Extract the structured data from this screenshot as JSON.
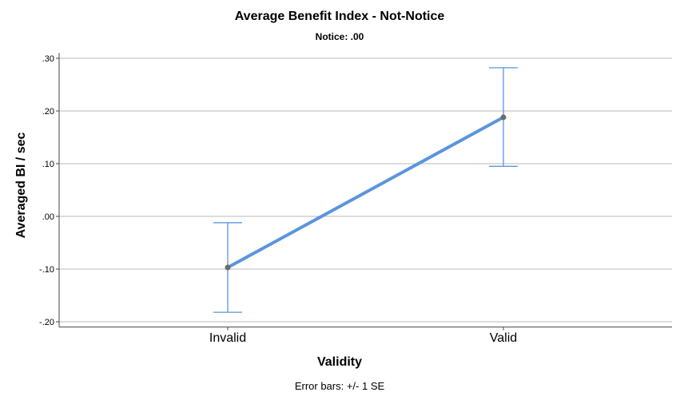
{
  "chart_data": {
    "type": "line",
    "title": "Average Benefit Index - Not-Notice",
    "subtitle": "Notice: .00",
    "xlabel": "Validity",
    "ylabel": "Averaged BI / sec",
    "categories": [
      "Invalid",
      "Valid"
    ],
    "series": [
      {
        "values": [
          -0.097,
          0.188
        ],
        "error_lower": [
          -0.182,
          0.095
        ],
        "error_upper": [
          -0.012,
          0.282
        ],
        "color": "#5b95dc"
      }
    ],
    "ylim": [
      -0.21,
      0.31
    ],
    "yticks": [
      0.3,
      0.2,
      0.1,
      0.0,
      -0.1,
      -0.2
    ],
    "ytick_labels": [
      ".30",
      ".20",
      ".10",
      ".00",
      "-.10",
      "-.20"
    ],
    "grid": true,
    "footnote": "Error bars: +/- 1 SE"
  }
}
